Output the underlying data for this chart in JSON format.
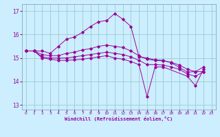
{
  "xlabel": "Windchill (Refroidissement éolien,°C)",
  "background_color": "#cceeff",
  "line_color": "#990099",
  "grid_color": "#99cccc",
  "xlim": [
    -0.5,
    23.5
  ],
  "ylim": [
    12.8,
    17.3
  ],
  "yticks": [
    13,
    14,
    15,
    16,
    17
  ],
  "xticks": [
    0,
    1,
    2,
    3,
    4,
    5,
    6,
    7,
    8,
    9,
    10,
    11,
    12,
    13,
    14,
    15,
    16,
    17,
    18,
    19,
    20,
    21,
    22,
    23
  ],
  "series": [
    [
      15.3,
      15.3,
      15.3,
      15.2,
      15.5,
      15.8,
      15.9,
      16.1,
      16.35,
      16.55,
      16.6,
      16.9,
      16.65,
      16.35,
      15.05,
      15.0,
      14.92,
      14.9,
      14.8,
      14.6,
      14.4,
      14.42,
      14.62,
      null
    ],
    [
      15.3,
      15.3,
      15.15,
      15.1,
      15.1,
      15.2,
      15.25,
      15.35,
      15.4,
      15.5,
      15.55,
      15.5,
      15.45,
      15.3,
      15.1,
      14.95,
      14.9,
      14.88,
      14.82,
      14.7,
      14.52,
      14.42,
      14.42,
      null
    ],
    [
      15.3,
      15.3,
      15.05,
      15.0,
      15.0,
      15.0,
      15.05,
      15.1,
      15.15,
      15.2,
      15.25,
      15.2,
      15.15,
      15.05,
      14.9,
      14.72,
      14.72,
      14.7,
      14.62,
      14.52,
      14.32,
      14.22,
      14.42,
      null
    ],
    [
      15.3,
      15.3,
      15.0,
      14.95,
      14.9,
      14.9,
      14.92,
      14.95,
      15.0,
      15.05,
      15.1,
      15.0,
      14.95,
      14.85,
      14.72,
      13.35,
      14.62,
      14.62,
      null,
      null,
      14.22,
      13.82,
      14.52,
      null
    ]
  ]
}
